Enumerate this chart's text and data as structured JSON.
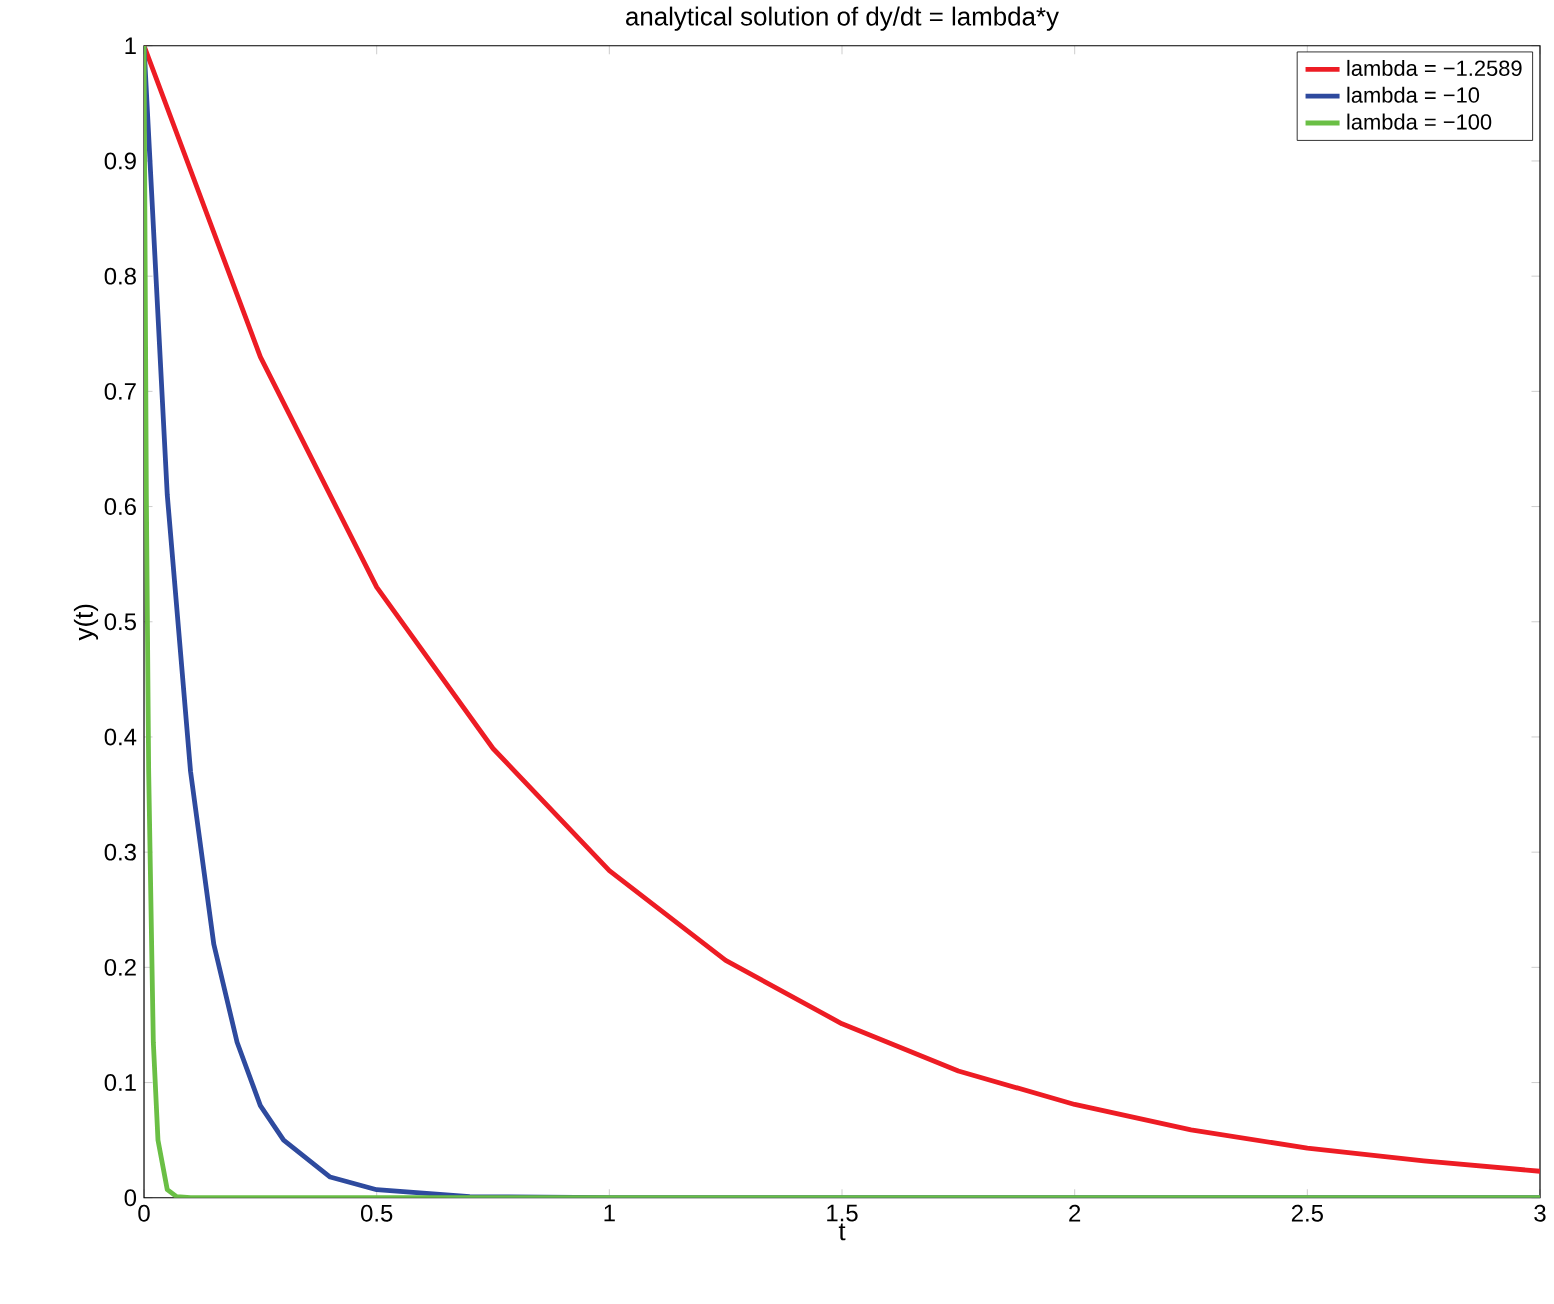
{
  "chart_data": {
    "type": "line",
    "title": "analytical solution of dy/dt = lambda*y",
    "xlabel": "t",
    "ylabel": "y(t)",
    "xlim": [
      0,
      3
    ],
    "ylim": [
      0,
      1
    ],
    "xticks": [
      0,
      0.5,
      1,
      1.5,
      2,
      2.5,
      3
    ],
    "yticks": [
      0,
      0.1,
      0.2,
      0.3,
      0.4,
      0.5,
      0.6,
      0.7,
      0.8,
      0.9,
      1
    ],
    "legend": "top right",
    "line_style": "solid",
    "series": [
      {
        "name": "lambda = −1.2589",
        "color": "#ed1c24",
        "x": [
          0,
          0.25,
          0.5,
          0.75,
          1,
          1.25,
          1.5,
          1.75,
          2,
          2.25,
          2.5,
          2.75,
          3
        ],
        "values": [
          1,
          0.73,
          0.53,
          0.39,
          0.284,
          0.206,
          0.151,
          0.11,
          0.081,
          0.059,
          0.043,
          0.032,
          0.023
        ]
      },
      {
        "name": "lambda = −10",
        "color": "#2e4a9e",
        "x": [
          0,
          0.05,
          0.1,
          0.15,
          0.2,
          0.25,
          0.3,
          0.4,
          0.5,
          0.7,
          1,
          3
        ],
        "values": [
          1,
          0.61,
          0.37,
          0.22,
          0.135,
          0.08,
          0.05,
          0.018,
          0.007,
          0.001,
          0,
          0
        ]
      },
      {
        "name": "lambda = −100",
        "color": "#6abf45",
        "x": [
          0,
          0.005,
          0.01,
          0.02,
          0.03,
          0.05,
          0.07,
          0.1,
          3
        ],
        "values": [
          1,
          0.61,
          0.37,
          0.135,
          0.05,
          0.007,
          0.001,
          0,
          0
        ]
      }
    ]
  }
}
